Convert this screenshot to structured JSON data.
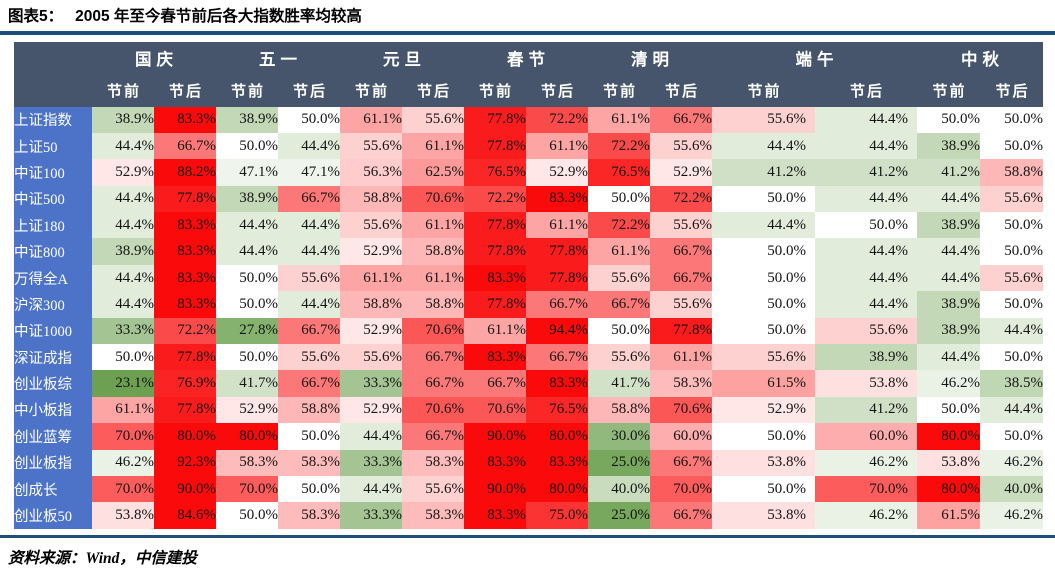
{
  "title": {
    "tag": "图表5：",
    "text": "2005 年至今春节前后各大指数胜率均较高"
  },
  "footer": {
    "text": "资料来源：Wind，中信建投"
  },
  "colors": {
    "rule": "#1F4E79",
    "header_bg": "#46556C",
    "row_label_bg": "#4C73C8",
    "scale_low_green": "#6CA150",
    "scale_mid_white": "#FFFFFF",
    "scale_high_red": "#FA0A0A"
  },
  "chart_data": {
    "type": "heatmap",
    "title": "2005 年至今春节前后各大指数胜率均较高",
    "value_format": "percent_1dp",
    "column_groups": [
      "国庆",
      "五一",
      "元旦",
      "春节",
      "清明",
      "端午",
      "中秋"
    ],
    "subheader_pre": "节前",
    "subheader_post": "节后",
    "colorscale": {
      "low": "#6CA150",
      "mid": "#FFFFFF",
      "high": "#FA0A0A",
      "mid_value": 50,
      "high_full_at": 80,
      "low_full_at": 23
    },
    "rows": [
      "上证指数",
      "上证50",
      "中证100",
      "中证500",
      "上证180",
      "中证800",
      "万得全A",
      "沪深300",
      "中证1000",
      "深证成指",
      "创业板综",
      "中小板指",
      "创业蓝筹",
      "创业板指",
      "创成长",
      "创业板50"
    ],
    "values": [
      [
        38.9,
        83.3,
        38.9,
        50.0,
        61.1,
        55.6,
        77.8,
        72.2,
        61.1,
        66.7,
        55.6,
        44.4,
        50.0,
        50.0
      ],
      [
        44.4,
        66.7,
        50.0,
        44.4,
        55.6,
        61.1,
        77.8,
        61.1,
        72.2,
        55.6,
        44.4,
        44.4,
        38.9,
        50.0
      ],
      [
        52.9,
        88.2,
        47.1,
        47.1,
        56.3,
        62.5,
        76.5,
        52.9,
        76.5,
        52.9,
        41.2,
        41.2,
        41.2,
        58.8
      ],
      [
        44.4,
        77.8,
        38.9,
        66.7,
        58.8,
        70.6,
        72.2,
        83.3,
        50.0,
        72.2,
        50.0,
        44.4,
        44.4,
        55.6
      ],
      [
        44.4,
        83.3,
        44.4,
        44.4,
        55.6,
        61.1,
        77.8,
        61.1,
        72.2,
        55.6,
        44.4,
        50.0,
        38.9,
        50.0
      ],
      [
        38.9,
        83.3,
        44.4,
        44.4,
        52.9,
        58.8,
        77.8,
        77.8,
        61.1,
        66.7,
        50.0,
        44.4,
        44.4,
        50.0
      ],
      [
        44.4,
        83.3,
        50.0,
        55.6,
        61.1,
        61.1,
        83.3,
        77.8,
        55.6,
        66.7,
        50.0,
        44.4,
        44.4,
        55.6
      ],
      [
        44.4,
        83.3,
        50.0,
        44.4,
        58.8,
        58.8,
        77.8,
        66.7,
        66.7,
        55.6,
        50.0,
        44.4,
        38.9,
        50.0
      ],
      [
        33.3,
        72.2,
        27.8,
        66.7,
        52.9,
        70.6,
        61.1,
        94.4,
        50.0,
        77.8,
        50.0,
        55.6,
        38.9,
        44.4
      ],
      [
        50.0,
        77.8,
        50.0,
        55.6,
        55.6,
        66.7,
        83.3,
        66.7,
        55.6,
        61.1,
        55.6,
        38.9,
        44.4,
        50.0
      ],
      [
        23.1,
        76.9,
        41.7,
        66.7,
        33.3,
        66.7,
        66.7,
        83.3,
        41.7,
        58.3,
        61.5,
        53.8,
        46.2,
        38.5
      ],
      [
        61.1,
        77.8,
        52.9,
        58.8,
        52.9,
        70.6,
        70.6,
        76.5,
        58.8,
        70.6,
        52.9,
        41.2,
        50.0,
        44.4
      ],
      [
        70.0,
        80.0,
        80.0,
        50.0,
        44.4,
        66.7,
        90.0,
        80.0,
        30.0,
        60.0,
        50.0,
        60.0,
        80.0,
        50.0
      ],
      [
        46.2,
        92.3,
        58.3,
        58.3,
        33.3,
        58.3,
        83.3,
        83.3,
        25.0,
        66.7,
        53.8,
        46.2,
        53.8,
        46.2
      ],
      [
        70.0,
        90.0,
        70.0,
        50.0,
        44.4,
        55.6,
        90.0,
        80.0,
        40.0,
        70.0,
        50.0,
        70.0,
        80.0,
        40.0
      ],
      [
        53.8,
        84.6,
        50.0,
        58.3,
        33.3,
        58.3,
        83.3,
        75.0,
        25.0,
        66.7,
        53.8,
        46.2,
        61.5,
        46.2
      ]
    ]
  }
}
